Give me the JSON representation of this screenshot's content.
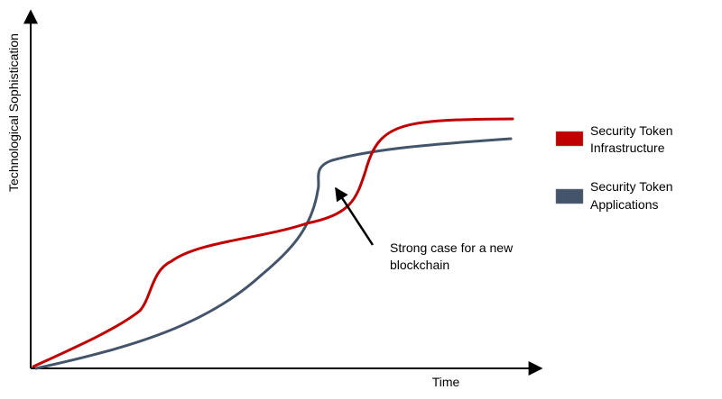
{
  "axes": {
    "x_label": "Time",
    "y_label": "Technological Sophistication"
  },
  "series": [
    {
      "name": "Security Token Infrastructure",
      "name_lines": [
        "Security Token",
        "Infrastructure"
      ],
      "color": "#c00000"
    },
    {
      "name": "Security Token Applications",
      "name_lines": [
        "Security Token",
        "Applications"
      ],
      "color": "#44546a"
    }
  ],
  "annotation": {
    "text": "Strong case for a new blockchain",
    "lines": [
      "Strong case for a new",
      "blockchain"
    ]
  },
  "colors": {
    "axis": "#000000",
    "background": "#ffffff"
  }
}
